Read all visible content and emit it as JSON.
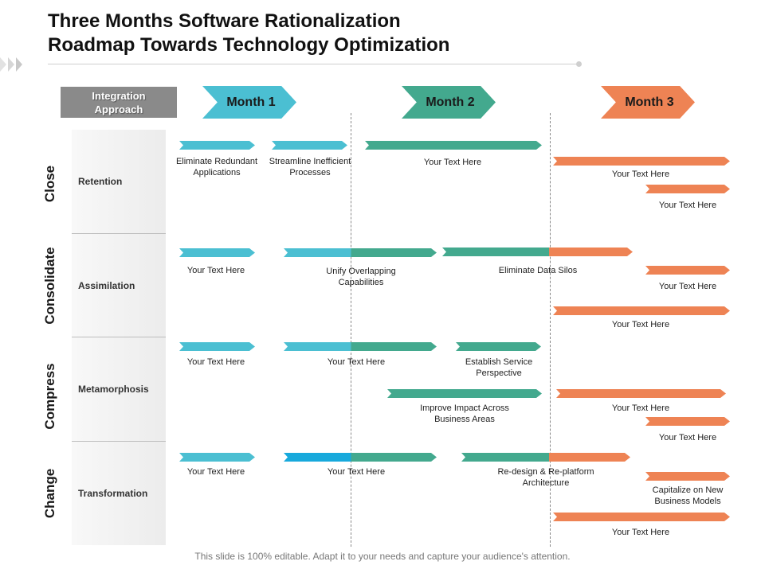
{
  "title": {
    "line1": "Three Months Software Rationalization",
    "line2": "Roadmap Towards Technology Optimization"
  },
  "header": {
    "approach_line1": "Integration",
    "approach_line2": "Approach",
    "months": [
      {
        "label": "Month 1",
        "color": "#4BBFD2"
      },
      {
        "label": "Month 2",
        "color": "#43A98E"
      },
      {
        "label": "Month 3",
        "color": "#EE8354"
      }
    ]
  },
  "rows": [
    {
      "phase": "Close",
      "name": "Retention"
    },
    {
      "phase": "Consolidate",
      "name": "Assimilation"
    },
    {
      "phase": "Compress",
      "name": "Metamorphosis"
    },
    {
      "phase": "Change",
      "name": "Transformation"
    }
  ],
  "tasks": [
    {
      "line1": "Eliminate Redundant",
      "line2": "Applications"
    },
    {
      "line1": "Streamline Inefficient",
      "line2": "Processes"
    },
    {
      "line1": "Your Text Here"
    },
    {
      "line1": "Your Text Here"
    },
    {
      "line1": "Your Text Here"
    },
    {
      "line1": "Your Text Here"
    },
    {
      "line1": "Unify Overlapping",
      "line2": "Capabilities"
    },
    {
      "line1": "Eliminate Data Silos"
    },
    {
      "line1": "Your Text Here"
    },
    {
      "line1": "Your Text Here"
    },
    {
      "line1": "Your Text Here"
    },
    {
      "line1": "Your Text Here"
    },
    {
      "line1": "Establish Service",
      "line2": "Perspective"
    },
    {
      "line1": "Improve Impact Across",
      "line2": "Business Areas"
    },
    {
      "line1": "Your Text Here"
    },
    {
      "line1": "Your Text Here"
    },
    {
      "line1": "Your Text Here"
    },
    {
      "line1": "Your Text Here"
    },
    {
      "line1": "Re-design & Re-platform",
      "line2": "Architecture"
    },
    {
      "line1": "Capitalize on New",
      "line2": "Business Models"
    },
    {
      "line1": "Your Text Here"
    }
  ],
  "colors": {
    "cyan": "#4BBFD2",
    "blue": "#17A9DC",
    "teal": "#43A98E",
    "orange": "#EE8354"
  },
  "footer": "This slide is 100% editable. Adapt it to your needs and capture your audience's attention."
}
